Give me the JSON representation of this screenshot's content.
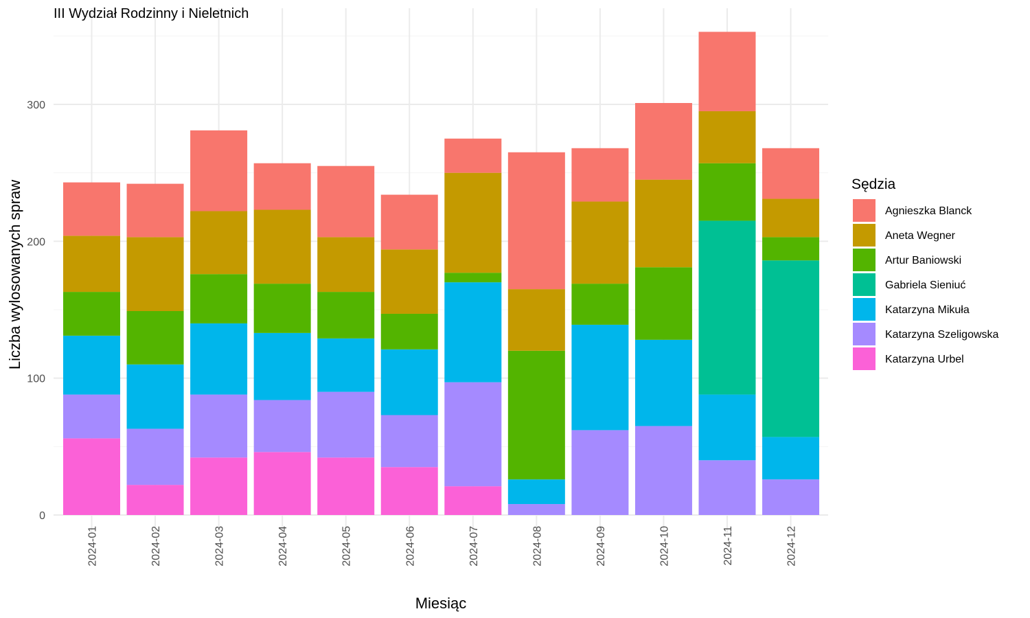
{
  "chart_data": {
    "type": "bar",
    "stacked": true,
    "title": "III Wydział Rodzinny i Nieletnich",
    "xlabel": "Miesiąc",
    "ylabel": "Liczba wylosowanych spraw",
    "ylim": [
      0,
      355
    ],
    "yticks": [
      0,
      100,
      200,
      300
    ],
    "grid": true,
    "legend": {
      "title": "Sędzia",
      "placement": "right"
    },
    "categories": [
      "2024-01",
      "2024-02",
      "2024-03",
      "2024-04",
      "2024-05",
      "2024-06",
      "2024-07",
      "2024-08",
      "2024-09",
      "2024-10",
      "2024-11",
      "2024-12"
    ],
    "series": [
      {
        "name": "Agnieszka Blanck",
        "color": "#F8766D",
        "values": [
          39,
          39,
          59,
          34,
          52,
          40,
          25,
          100,
          39,
          56,
          58,
          37
        ]
      },
      {
        "name": "Aneta Wegner",
        "color": "#C49A00",
        "values": [
          41,
          54,
          46,
          54,
          40,
          47,
          73,
          45,
          60,
          64,
          38,
          28
        ]
      },
      {
        "name": "Artur Baniowski",
        "color": "#53B400",
        "values": [
          32,
          39,
          36,
          36,
          34,
          26,
          7,
          94,
          30,
          53,
          42,
          17
        ]
      },
      {
        "name": "Gabriela Sieniuć",
        "color": "#00C094",
        "values": [
          0,
          0,
          0,
          0,
          0,
          0,
          0,
          0,
          0,
          0,
          127,
          129
        ]
      },
      {
        "name": "Katarzyna Mikuła",
        "color": "#00B6EB",
        "values": [
          43,
          47,
          52,
          49,
          39,
          48,
          73,
          18,
          77,
          63,
          48,
          31
        ]
      },
      {
        "name": "Katarzyna Szeligowska",
        "color": "#A58AFF",
        "values": [
          32,
          41,
          46,
          38,
          48,
          38,
          76,
          8,
          62,
          65,
          40,
          26
        ]
      },
      {
        "name": "Katarzyna Urbel",
        "color": "#FB61D7",
        "values": [
          56,
          22,
          42,
          46,
          42,
          35,
          21,
          0,
          0,
          0,
          0,
          0
        ]
      }
    ]
  }
}
